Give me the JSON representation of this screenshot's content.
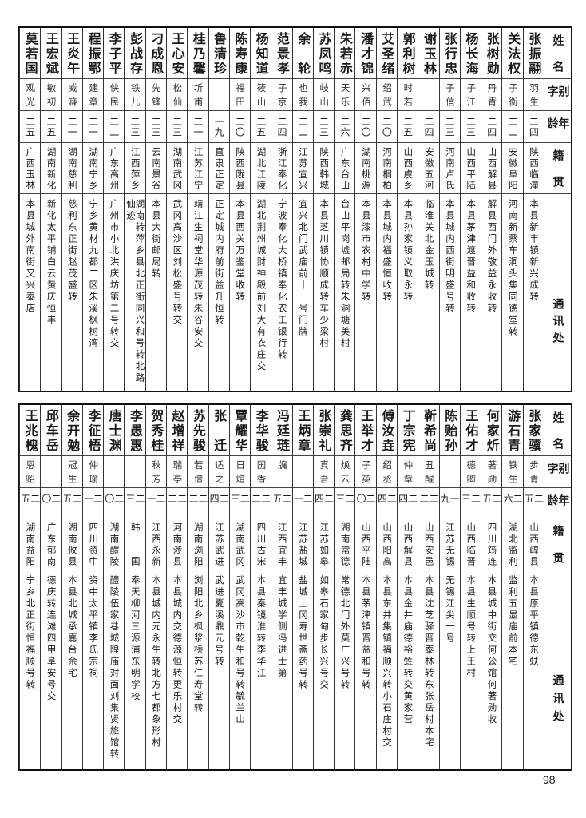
{
  "header": {
    "name": "姓名",
    "courtesy": "别字",
    "age": "年龄",
    "origin": "籍贯",
    "address": "通讯处"
  },
  "top_rows": [
    {
      "name": "张振翮",
      "courtesy": "羽生",
      "age": "二四",
      "origin": "陕西临潼",
      "address": "本县新丰镇新兴成转"
    },
    {
      "name": "关法权",
      "courtesy": "子衡",
      "age": "二二",
      "origin": "安徽阜阳",
      "address": "河南新蔡车洞头集同德堂转"
    },
    {
      "name": "张树勋",
      "courtesy": "丹青",
      "age": "二四",
      "origin": "山西解县",
      "address": "解县西门外敬益永收转"
    },
    {
      "name": "杨长海",
      "courtesy": "子江",
      "age": "二三",
      "origin": "山西平陆",
      "address": "本县茅津渡晋益和收转"
    },
    {
      "name": "张行忠",
      "courtesy": "子信",
      "age": "二三",
      "origin": "河南卢氏",
      "address": "本县城内西街明盛号转"
    },
    {
      "name": "谢玉林",
      "courtesy": "",
      "age": "二四",
      "origin": "安徽五河",
      "address": "临淮关北金玉城转"
    },
    {
      "name": "郭利树",
      "courtesy": "时若",
      "age": "二五",
      "origin": "山西虞乡",
      "address": "本县孙家镇义取永转"
    },
    {
      "name": "艾圣绪",
      "courtesy": "绍武",
      "age": "二〇",
      "origin": "河南桐柏",
      "address": "本县城内福盛恒收转"
    },
    {
      "name": "潘才锦",
      "courtesy": "兴佰",
      "age": "二〇",
      "origin": "湖南桃源",
      "address": "本县漆市农村中学转"
    },
    {
      "name": "朱若赤",
      "courtesy": "天乐",
      "age": "二六",
      "origin": "广东台山",
      "address": "台山平岗墟邮局转朱洞塘美村"
    },
    {
      "name": "苏凤鸣",
      "courtesy": "岐山",
      "age": "二三",
      "origin": "陕西韩城",
      "address": "本县芝川镇协顺成转车少梁村"
    },
    {
      "name": "余轮",
      "courtesy": "也我",
      "age": "二二",
      "origin": "江苏宜兴",
      "address": "宜兴北门武庙前十一号门牌"
    },
    {
      "name": "范景孝",
      "courtesy": "子京",
      "age": "二四",
      "origin": "浙江奉化",
      "address": "宁波奉化大桥镇奉化农工银行转"
    },
    {
      "name": "杨知道",
      "courtesy": "筱山",
      "age": "二五",
      "origin": "湖北江陵",
      "address": "湖北荆州城财神殿前刘大有衣庄交"
    },
    {
      "name": "陈寿康",
      "courtesy": "福田",
      "age": "二〇",
      "origin": "陕西陇县",
      "address": "本县西关万鉴堂收转"
    },
    {
      "name": "鲁清珍",
      "courtesy": "",
      "age": "一九",
      "origin": "直隶正定",
      "address": "正定城内府前街益升恒转"
    },
    {
      "name": "桂乃馨",
      "courtesy": "圻甫",
      "age": "二一",
      "origin": "江苏江宁",
      "address": "靖江生祠堂华源茂转朱谷安交"
    },
    {
      "name": "王心安",
      "courtesy": "松仙",
      "age": "二三",
      "origin": "湖南武冈",
      "address": "武冈高沙区刘松盛号转交"
    },
    {
      "name": "刁成恩",
      "courtesy": "先锋",
      "age": "二三",
      "origin": "云南景谷",
      "address": "本县大街邮局转"
    },
    {
      "name": "彭战存",
      "courtesy": "铁儿",
      "age": "二三",
      "origin": "江西萍乡",
      "address": "湖南转萍乡县北正街同兴和号转北路仙迹"
    },
    {
      "name": "李子平",
      "courtesy": "侠民",
      "age": "二二",
      "origin": "广东高州",
      "address": "广州市小北洪庆坊第二号转交"
    },
    {
      "name": "程振鄂",
      "courtesy": "建章",
      "age": "二一",
      "origin": "湖南宁乡",
      "address": "宁乡黄材九都二区朱溪枫树湾"
    },
    {
      "name": "王炎午",
      "courtesy": "威濂",
      "age": "二一",
      "origin": "湖南慈利",
      "address": "慈利东正街赵茂盛转"
    },
    {
      "name": "王宏斌",
      "courtesy": "敏初",
      "age": "二五",
      "origin": "湖南新化",
      "address": "新化太平铺白云黄庆恒丰"
    },
    {
      "name": "莫若国",
      "courtesy": "观光",
      "age": "二五",
      "origin": "广西玉林",
      "address": "本县城外南街又兴泰店"
    }
  ],
  "bottom_rows": [
    {
      "name": "张家骥",
      "courtesy": "步青",
      "age": "二五",
      "origin": "山西崞县",
      "address": "本县原平镇德东蚨"
    },
    {
      "name": "游石青",
      "courtesy": "铁生",
      "age": "二六",
      "origin": "湖北监利",
      "address": "监利五显庙前本宅"
    },
    {
      "name": "何家炘",
      "courtesy": "著勋",
      "age": "二五",
      "origin": "四川筠连",
      "address": "本县城中街交何公馆何著勋收"
    },
    {
      "name": "王佑才",
      "courtesy": "德卿",
      "age": "二三",
      "origin": "山西临晋",
      "address": "本县生顺号转上王村"
    },
    {
      "name": "陈贻孙",
      "courtesy": "",
      "age": "一九",
      "origin": "江苏无锡",
      "address": "无锡江尖一号"
    },
    {
      "name": "靳希尚",
      "courtesy": "丑醒",
      "age": "二二",
      "origin": "山西安邑",
      "address": "本县沈芝驿晋泰林转东张岳村本宅"
    },
    {
      "name": "丁宗宪",
      "courtesy": "仲章",
      "age": "二四",
      "origin": "山西解县",
      "address": "本县金井庙德裕甡转交黄家营"
    },
    {
      "name": "傅汝垚",
      "courtesy": "绍丞",
      "age": "二四",
      "origin": "山西阳高",
      "address": "本县东井集镇福顺兴转小石庄村交"
    },
    {
      "name": "王举才",
      "courtesy": "子英",
      "age": "二〇",
      "origin": "山西平陆",
      "address": "本县茅津镇晋益和号转"
    },
    {
      "name": "龚思齐",
      "courtesy": "焕云",
      "age": "二三",
      "origin": "湖南常德",
      "address": "常德北门外莫广兴号转"
    },
    {
      "name": "张崇礼",
      "courtesy": "真吾",
      "age": "二四",
      "origin": "江苏如皋",
      "address": "如皋石家甸步长兴号交"
    },
    {
      "name": "王炳章",
      "courtesy": "",
      "age": "二一",
      "origin": "江苏盐城",
      "address": "盐城上冈寿世斋药号转"
    },
    {
      "name": "冯廷琏",
      "courtesy": "牖",
      "age": "二五",
      "origin": "江西宜丰",
      "address": "宜丰城学侧冯进士第"
    },
    {
      "name": "李华骏",
      "courtesy": "国香",
      "age": "二二",
      "origin": "四川古宋",
      "address": "本县秦镜淮转李华江"
    },
    {
      "name": "覃耀华",
      "courtesy": "日煊",
      "age": "二三",
      "origin": "湖南武冈",
      "address": "武冈高沙市乾生和号转毓兰山"
    },
    {
      "name": "张迁",
      "courtesy": "适之",
      "age": "二四",
      "origin": "江苏武进",
      "address": "武进夏溪鼎元号转"
    },
    {
      "name": "苏先骏",
      "courtesy": "若僧",
      "age": "二二",
      "origin": "湖南浏阳",
      "address": "浏阳北乡枫浆桥苏仁寿堂转"
    },
    {
      "name": "赵增祥",
      "courtesy": "瑞亭",
      "age": "二二",
      "origin": "河南涉县",
      "address": "本县城内交德源恒转更乐村交"
    },
    {
      "name": "贺秀桂",
      "courtesy": "秋芳",
      "age": "二一",
      "origin": "江西永新",
      "address": "本县城内元永生转北方七都象形村"
    },
    {
      "name": "李愚惠",
      "courtesy": "",
      "age": "二三",
      "origin": "韩国",
      "address": "奉天柳河三源浦东明学校"
    },
    {
      "name": "唐士渊",
      "courtesy": "",
      "age": "二〇",
      "origin": "湖南醴陵",
      "address": "醴陵伍家巷城隍庙对面刘集贤旅馆转"
    },
    {
      "name": "李征梧",
      "courtesy": "仲瑜",
      "age": "二一",
      "origin": "四川资中",
      "address": "资中太平镇李氏宗祠"
    },
    {
      "name": "余开勉",
      "courtesy": "冠生",
      "age": "二五",
      "origin": "湖南攸县",
      "address": "本县北城承嘉台余宅"
    },
    {
      "name": "邱车岳",
      "courtesy": "",
      "age": "二〇",
      "origin": "广东郁南",
      "address": "德庆转连滩四甲阜安号交"
    },
    {
      "name": "王兆槐",
      "courtesy": "恩贻",
      "age": "二五",
      "origin": "湖南益阳",
      "address": "宁乡北正街恒福顺号转"
    }
  ],
  "page_number": "98"
}
